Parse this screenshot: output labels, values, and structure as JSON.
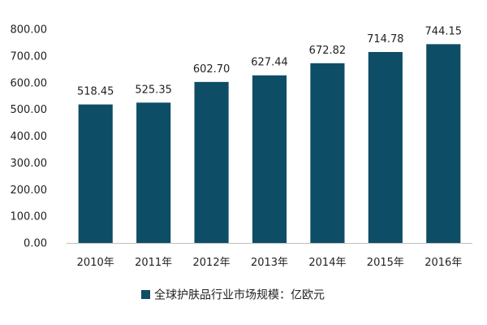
{
  "chart_data": {
    "type": "bar",
    "categories": [
      "2010年",
      "2011年",
      "2012年",
      "2013年",
      "2014年",
      "2015年",
      "2016年"
    ],
    "series": [
      {
        "name": "全球护肤品行业市场规模：亿欧元",
        "values": [
          518.45,
          525.35,
          602.7,
          627.44,
          672.82,
          714.78,
          744.15
        ],
        "value_labels": [
          "518.45",
          "525.35",
          "602.70",
          "627.44",
          "672.82",
          "714.78",
          "744.15"
        ]
      }
    ],
    "y_ticks": [
      "0.00",
      "100.00",
      "200.00",
      "300.00",
      "400.00",
      "500.00",
      "600.00",
      "700.00",
      "800.00"
    ],
    "ylim": [
      0,
      800
    ],
    "title": "",
    "xlabel": "",
    "ylabel": "",
    "grid": false,
    "legend_position": "bottom"
  },
  "colors": {
    "bar": "#0e4d66",
    "axis": "#bfbfbf",
    "text": "#222222"
  }
}
